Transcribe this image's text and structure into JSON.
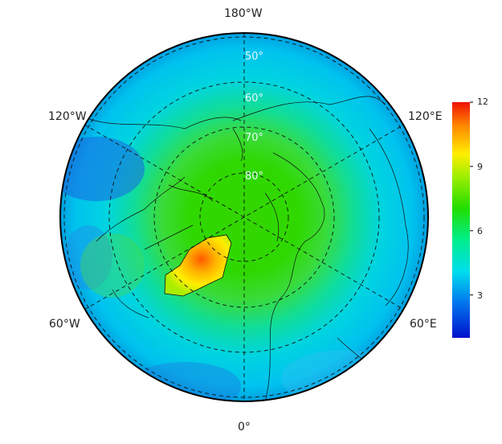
{
  "map": {
    "longitude_labels": {
      "top": "180°W",
      "upper_left": "120°W",
      "upper_right": "120°E",
      "lower_left": "60°W",
      "lower_right": "60°E",
      "bottom": "0°"
    },
    "latitude_labels": [
      "50°",
      "60°",
      "70°",
      "80°"
    ]
  },
  "colorbar": {
    "ticks": [
      "12",
      "9",
      "6",
      "3"
    ],
    "min": 1,
    "max": 12,
    "colors": [
      "#0011cc",
      "#0077ee",
      "#00ddee",
      "#00ee88",
      "#22dd00",
      "#99ee00",
      "#ffee00",
      "#ff8800",
      "#ee1100"
    ]
  }
}
